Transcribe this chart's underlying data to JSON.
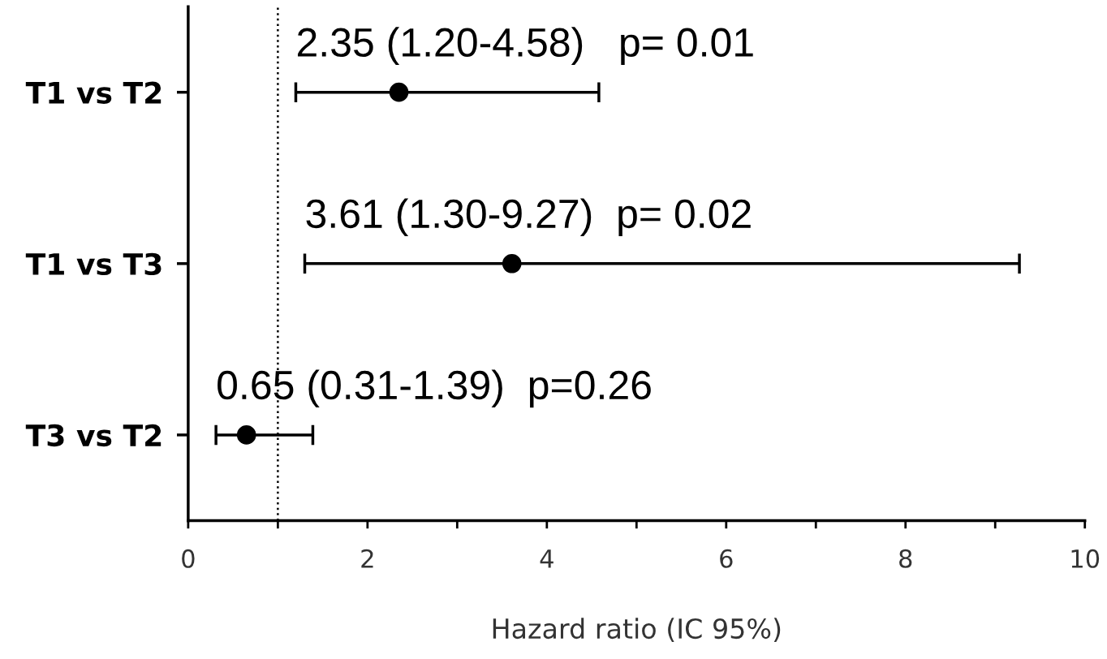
{
  "chart_data": {
    "type": "scatter",
    "orientation": "horizontal",
    "xlabel": "Hazard ratio (IC 95%)",
    "categories": [
      "T1 vs T2",
      "T1 vs T3",
      "T3 vs T2"
    ],
    "series": [
      {
        "color": "#000000",
        "values": [
          2.35,
          3.61,
          0.65
        ],
        "errors": [
          [
            1.2,
            4.58
          ],
          [
            1.3,
            9.27
          ],
          [
            0.31,
            1.39
          ]
        ],
        "value_labels": [
          "2.35 (1.20-4.58)   p= 0.01",
          "3.61 (1.30-9.27)  p= 0.02",
          "0.65 (0.31-1.39)  p=0.26"
        ]
      }
    ],
    "marker": "circle",
    "xlim": [
      0,
      10
    ],
    "xticks": [
      0,
      {
        "value": 1,
        "label": null
      },
      2,
      {
        "value": 3,
        "label": null
      },
      4,
      {
        "value": 5,
        "label": null
      },
      6,
      {
        "value": 7,
        "label": null
      },
      8,
      {
        "value": 9,
        "label": null
      },
      10
    ],
    "ref_lines": [
      {
        "axis": "x",
        "value": 1,
        "line_style": "dotted",
        "color": "#000000"
      }
    ],
    "grid": false,
    "legend": false
  }
}
